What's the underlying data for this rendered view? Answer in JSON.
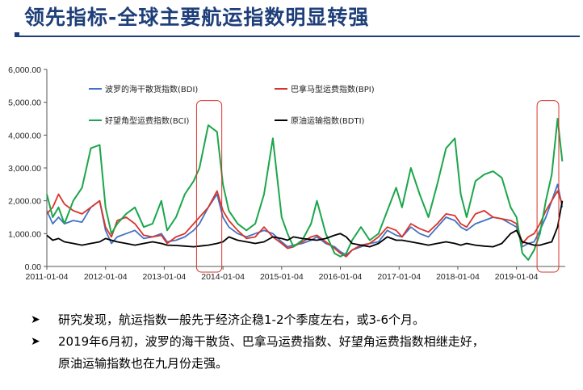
{
  "page": {
    "title": "领先指标-全球主要航运指数明显转强",
    "notes": [
      "研究发现，航运指数一般先于经济企稳1-2个季度左右，或3-6个月。",
      "2019年6月初，波罗的海干散货、巴拿马运费指数、好望角运费指数相继走好，",
      "原油运输指数也在九月份走强。"
    ],
    "bullet_icon": "arrow-bullet-icon"
  },
  "chart_data": {
    "type": "line",
    "title": "",
    "xlabel": "",
    "ylabel": "",
    "x_ticks": [
      "2011-01-04",
      "2012-01-04",
      "2013-01-04",
      "2014-01-04",
      "2015-01-04",
      "2016-01-04",
      "2017-01-04",
      "2018-01-04",
      "2019-01-04"
    ],
    "y_ticks": [
      "0.00",
      "1,000.00",
      "2,000.00",
      "3,000.00",
      "4,000.00",
      "5,000.00",
      "6,000.00"
    ],
    "ylim": [
      0,
      6000
    ],
    "xlim": [
      2011.0,
      2019.83
    ],
    "grid": false,
    "legend_position": "top-left",
    "highlight_ranges": [
      [
        2013.55,
        2013.98
      ],
      [
        2019.35,
        2019.72
      ]
    ],
    "highlight_color": "#d9342b",
    "series": [
      {
        "name": "波罗的海干散货指数(BDI)",
        "color": "#4472c4",
        "x": [
          2011.0,
          2011.1,
          2011.2,
          2011.3,
          2011.45,
          2011.6,
          2011.75,
          2011.9,
          2012.0,
          2012.1,
          2012.2,
          2012.35,
          2012.5,
          2012.65,
          2012.8,
          2012.95,
          2013.05,
          2013.2,
          2013.35,
          2013.5,
          2013.6,
          2013.75,
          2013.9,
          2014.0,
          2014.1,
          2014.25,
          2014.4,
          2014.55,
          2014.7,
          2014.85,
          2015.0,
          2015.1,
          2015.2,
          2015.35,
          2015.5,
          2015.6,
          2015.75,
          2015.9,
          2016.0,
          2016.1,
          2016.2,
          2016.35,
          2016.5,
          2016.65,
          2016.8,
          2016.95,
          2017.05,
          2017.2,
          2017.35,
          2017.5,
          2017.65,
          2017.8,
          2017.95,
          2018.05,
          2018.15,
          2018.3,
          2018.45,
          2018.6,
          2018.75,
          2018.9,
          2019.0,
          2019.1,
          2019.2,
          2019.3,
          2019.4,
          2019.5,
          2019.6,
          2019.7,
          2019.78
        ],
        "values": [
          1700,
          1300,
          1500,
          1300,
          1400,
          1350,
          1800,
          2000,
          1100,
          700,
          900,
          1000,
          1100,
          850,
          900,
          1000,
          750,
          800,
          900,
          1100,
          1300,
          1800,
          2200,
          1500,
          1200,
          1000,
          900,
          1000,
          1100,
          1000,
          750,
          600,
          650,
          700,
          800,
          900,
          700,
          600,
          450,
          350,
          500,
          600,
          700,
          750,
          1100,
          950,
          900,
          1200,
          1000,
          900,
          1200,
          1500,
          1400,
          1200,
          1100,
          1300,
          1400,
          1500,
          1450,
          1300,
          1200,
          600,
          700,
          750,
          1100,
          1500,
          2000,
          2500,
          1800
        ]
      },
      {
        "name": "巴拿马型运费指数(BPI)",
        "color": "#d9342b",
        "x": [
          2011.0,
          2011.1,
          2011.2,
          2011.3,
          2011.45,
          2011.6,
          2011.75,
          2011.9,
          2012.0,
          2012.1,
          2012.2,
          2012.35,
          2012.5,
          2012.65,
          2012.8,
          2012.95,
          2013.05,
          2013.2,
          2013.35,
          2013.5,
          2013.6,
          2013.75,
          2013.9,
          2014.0,
          2014.1,
          2014.25,
          2014.4,
          2014.55,
          2014.7,
          2014.85,
          2015.0,
          2015.1,
          2015.2,
          2015.35,
          2015.5,
          2015.6,
          2015.75,
          2015.9,
          2016.0,
          2016.1,
          2016.2,
          2016.35,
          2016.5,
          2016.65,
          2016.8,
          2016.95,
          2017.05,
          2017.2,
          2017.35,
          2017.5,
          2017.65,
          2017.8,
          2017.95,
          2018.05,
          2018.15,
          2018.3,
          2018.45,
          2018.6,
          2018.75,
          2018.9,
          2019.0,
          2019.1,
          2019.2,
          2019.3,
          2019.4,
          2019.5,
          2019.6,
          2019.7,
          2019.78
        ],
        "values": [
          1600,
          1800,
          2200,
          1900,
          1700,
          1600,
          1800,
          2000,
          1200,
          900,
          1400,
          1500,
          1300,
          950,
          900,
          950,
          700,
          900,
          1000,
          1300,
          1500,
          1800,
          2300,
          1700,
          1400,
          1100,
          850,
          900,
          1200,
          900,
          700,
          550,
          600,
          750,
          900,
          950,
          750,
          550,
          400,
          300,
          500,
          650,
          700,
          900,
          1200,
          1100,
          900,
          1300,
          1150,
          1050,
          1300,
          1600,
          1550,
          1300,
          1200,
          1600,
          1700,
          1500,
          1450,
          1400,
          1300,
          700,
          900,
          1000,
          1300,
          1700,
          2000,
          2300,
          1900
        ]
      },
      {
        "name": "好望角型运费指数(BCI)",
        "color": "#1ca64b",
        "x": [
          2011.0,
          2011.1,
          2011.2,
          2011.3,
          2011.45,
          2011.6,
          2011.75,
          2011.9,
          2012.0,
          2012.1,
          2012.2,
          2012.35,
          2012.5,
          2012.65,
          2012.8,
          2012.95,
          2013.05,
          2013.2,
          2013.35,
          2013.5,
          2013.6,
          2013.75,
          2013.9,
          2014.0,
          2014.1,
          2014.25,
          2014.4,
          2014.55,
          2014.7,
          2014.85,
          2015.0,
          2015.1,
          2015.2,
          2015.35,
          2015.5,
          2015.6,
          2015.75,
          2015.9,
          2016.0,
          2016.1,
          2016.2,
          2016.35,
          2016.5,
          2016.65,
          2016.8,
          2016.95,
          2017.05,
          2017.2,
          2017.35,
          2017.5,
          2017.65,
          2017.8,
          2017.95,
          2018.05,
          2018.15,
          2018.3,
          2018.45,
          2018.6,
          2018.75,
          2018.9,
          2019.0,
          2019.1,
          2019.2,
          2019.3,
          2019.4,
          2019.5,
          2019.6,
          2019.7,
          2019.78
        ],
        "values": [
          2200,
          1500,
          1800,
          1300,
          2000,
          2400,
          3600,
          3700,
          1800,
          1000,
          1300,
          1600,
          1800,
          1200,
          1300,
          2000,
          1100,
          1500,
          2200,
          2600,
          3000,
          4300,
          4100,
          2500,
          1700,
          1300,
          1100,
          1300,
          2200,
          3900,
          1500,
          1000,
          600,
          800,
          1300,
          2000,
          1000,
          400,
          300,
          400,
          800,
          1200,
          800,
          1000,
          1700,
          2400,
          1800,
          3000,
          2200,
          1500,
          2500,
          3600,
          3900,
          2200,
          1500,
          2600,
          2800,
          2900,
          2700,
          1800,
          1500,
          400,
          200,
          500,
          1000,
          2000,
          2800,
          4500,
          3200
        ]
      },
      {
        "name": "原油运输指数(BDTI)",
        "color": "#000000",
        "x": [
          2011.0,
          2011.1,
          2011.2,
          2011.3,
          2011.45,
          2011.6,
          2011.75,
          2011.9,
          2012.0,
          2012.1,
          2012.2,
          2012.35,
          2012.5,
          2012.65,
          2012.8,
          2012.95,
          2013.05,
          2013.2,
          2013.35,
          2013.5,
          2013.6,
          2013.75,
          2013.9,
          2014.0,
          2014.1,
          2014.25,
          2014.4,
          2014.55,
          2014.7,
          2014.85,
          2015.0,
          2015.1,
          2015.2,
          2015.35,
          2015.5,
          2015.6,
          2015.75,
          2015.9,
          2016.0,
          2016.1,
          2016.2,
          2016.35,
          2016.5,
          2016.65,
          2016.8,
          2016.95,
          2017.05,
          2017.2,
          2017.35,
          2017.5,
          2017.65,
          2017.8,
          2017.95,
          2018.05,
          2018.15,
          2018.3,
          2018.45,
          2018.6,
          2018.75,
          2018.9,
          2019.0,
          2019.1,
          2019.2,
          2019.3,
          2019.4,
          2019.5,
          2019.6,
          2019.7,
          2019.78
        ],
        "values": [
          950,
          800,
          850,
          750,
          700,
          650,
          700,
          750,
          850,
          800,
          750,
          700,
          650,
          700,
          750,
          700,
          650,
          640,
          620,
          600,
          620,
          650,
          700,
          750,
          900,
          800,
          750,
          700,
          750,
          900,
          850,
          800,
          900,
          850,
          820,
          800,
          850,
          950,
          1000,
          900,
          700,
          650,
          600,
          700,
          900,
          800,
          800,
          750,
          700,
          650,
          700,
          750,
          700,
          650,
          700,
          650,
          620,
          600,
          700,
          1000,
          1100,
          750,
          700,
          650,
          650,
          700,
          750,
          1200,
          2000
        ]
      }
    ]
  }
}
